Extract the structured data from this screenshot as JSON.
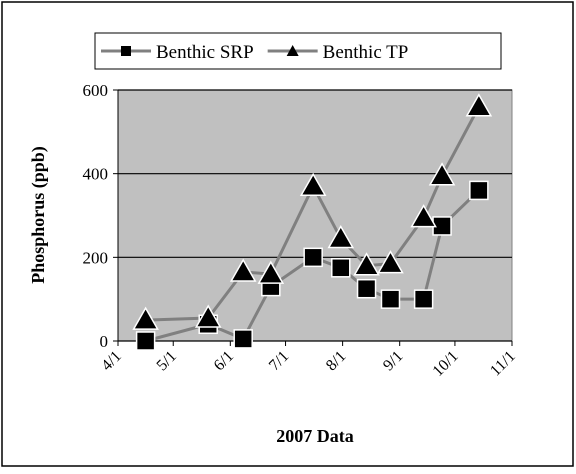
{
  "chart_data": {
    "type": "line",
    "y_label": "Phosphorus (ppb)",
    "x_label": "2007 Data",
    "x": [
      "4/16",
      "5/20",
      "6/8",
      "6/23",
      "7/16",
      "7/31",
      "8/14",
      "8/27",
      "9/14",
      "9/24",
      "10/14"
    ],
    "series": [
      {
        "name": "Benthic SRP",
        "color": "#808080",
        "marker": "square",
        "values": [
          0,
          40,
          5,
          130,
          200,
          175,
          125,
          100,
          100,
          275,
          360
        ]
      },
      {
        "name": "Benthic TP",
        "color": "#808080",
        "marker": "triangle",
        "values": [
          50,
          55,
          165,
          160,
          370,
          245,
          180,
          185,
          295,
          395,
          560
        ]
      }
    ],
    "xlim": [
      "4/1",
      "11/1"
    ],
    "xticks": [
      "4/1",
      "5/1",
      "6/1",
      "7/1",
      "8/1",
      "9/1",
      "10/1",
      "11/1"
    ],
    "ylim": [
      0,
      600
    ],
    "yticks": [
      0,
      200,
      400,
      600
    ],
    "grid": true,
    "plot_background": "#c0c0c0",
    "legend": "top"
  }
}
